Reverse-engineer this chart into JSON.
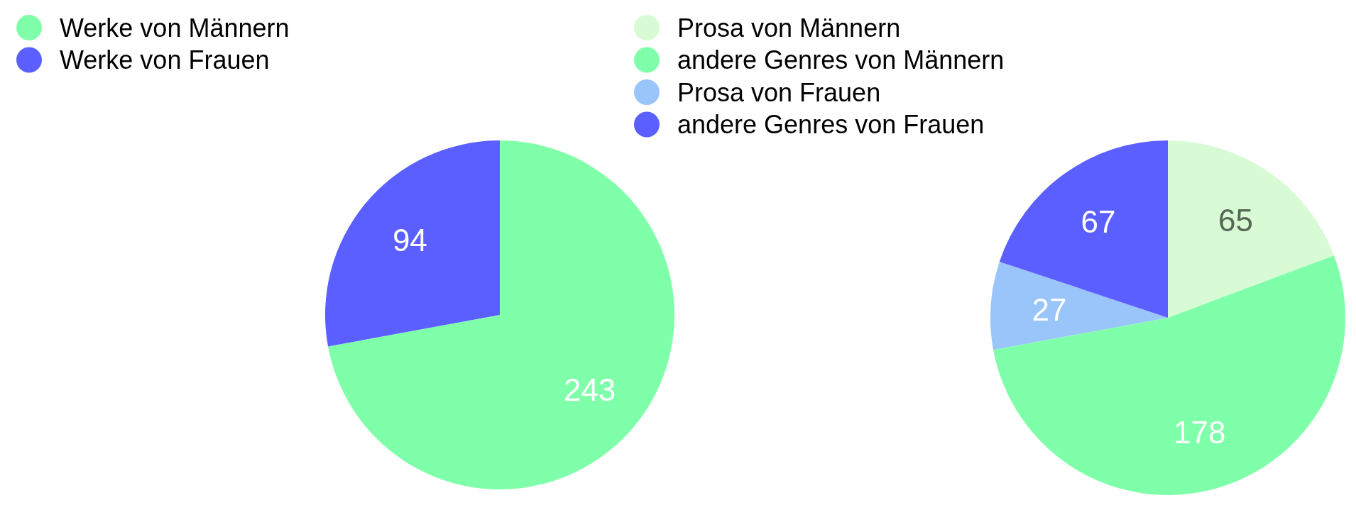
{
  "chart_data": [
    {
      "type": "pie",
      "categories": [
        "Werke von Männern",
        "Werke von Frauen"
      ],
      "values": [
        243,
        94
      ],
      "colors": [
        "#80ffaa",
        "#5b5fff"
      ],
      "data_labels": true,
      "legend": "top left"
    },
    {
      "type": "pie",
      "categories": [
        "Prosa von Männern",
        "andere Genres von Männern",
        "Prosa von Frauen",
        "andere Genres von Frauen"
      ],
      "values": [
        65,
        178,
        27,
        67
      ],
      "colors": [
        "#d8fbd6",
        "#80ffaa",
        "#99c5fa",
        "#5b5fff"
      ],
      "data_labels": true,
      "legend": "top left"
    }
  ]
}
